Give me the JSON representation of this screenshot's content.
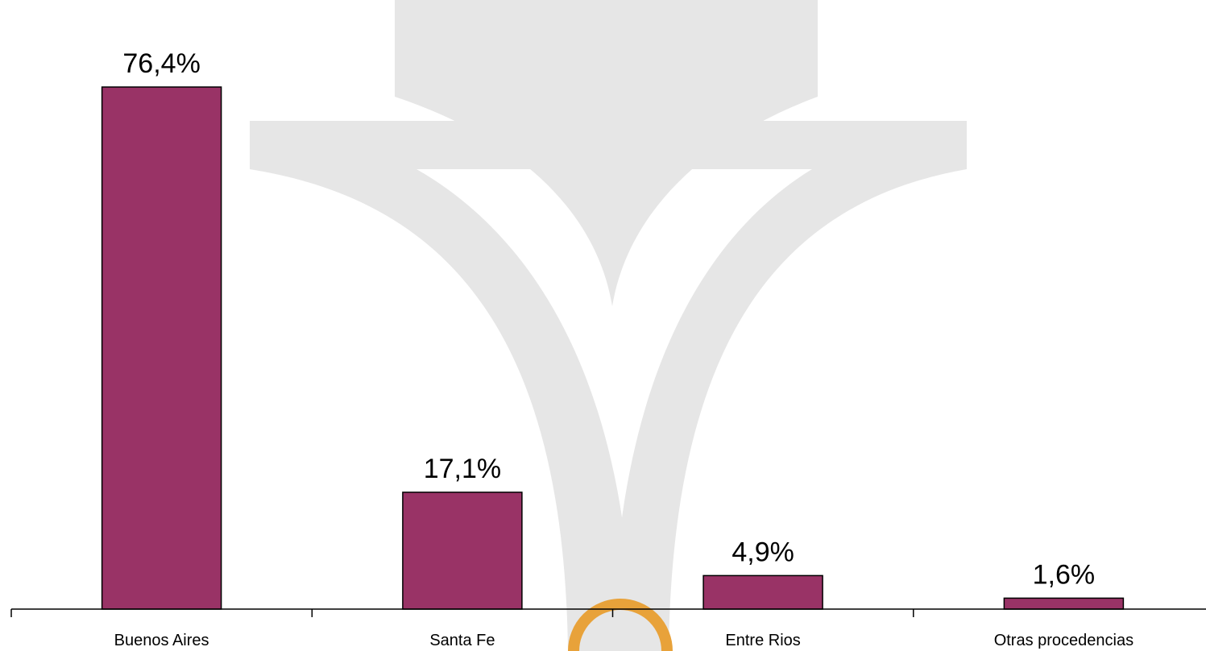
{
  "chart_data": {
    "type": "bar",
    "categories": [
      "Buenos Aires",
      "Santa Fe",
      "Entre Rios",
      "Otras procedencias"
    ],
    "values": [
      76.4,
      17.1,
      4.9,
      1.6
    ],
    "data_labels": [
      "76,4%",
      "17,1%",
      "4,9%",
      "1,6%"
    ],
    "title": "",
    "xlabel": "",
    "ylabel": "",
    "ylim": [
      0,
      76.4
    ],
    "grid": false,
    "legend": "none",
    "bar_color": "#993366"
  },
  "background": {
    "watermark_color": "#e6e6e6",
    "emblem_color": "#e8a23a"
  }
}
